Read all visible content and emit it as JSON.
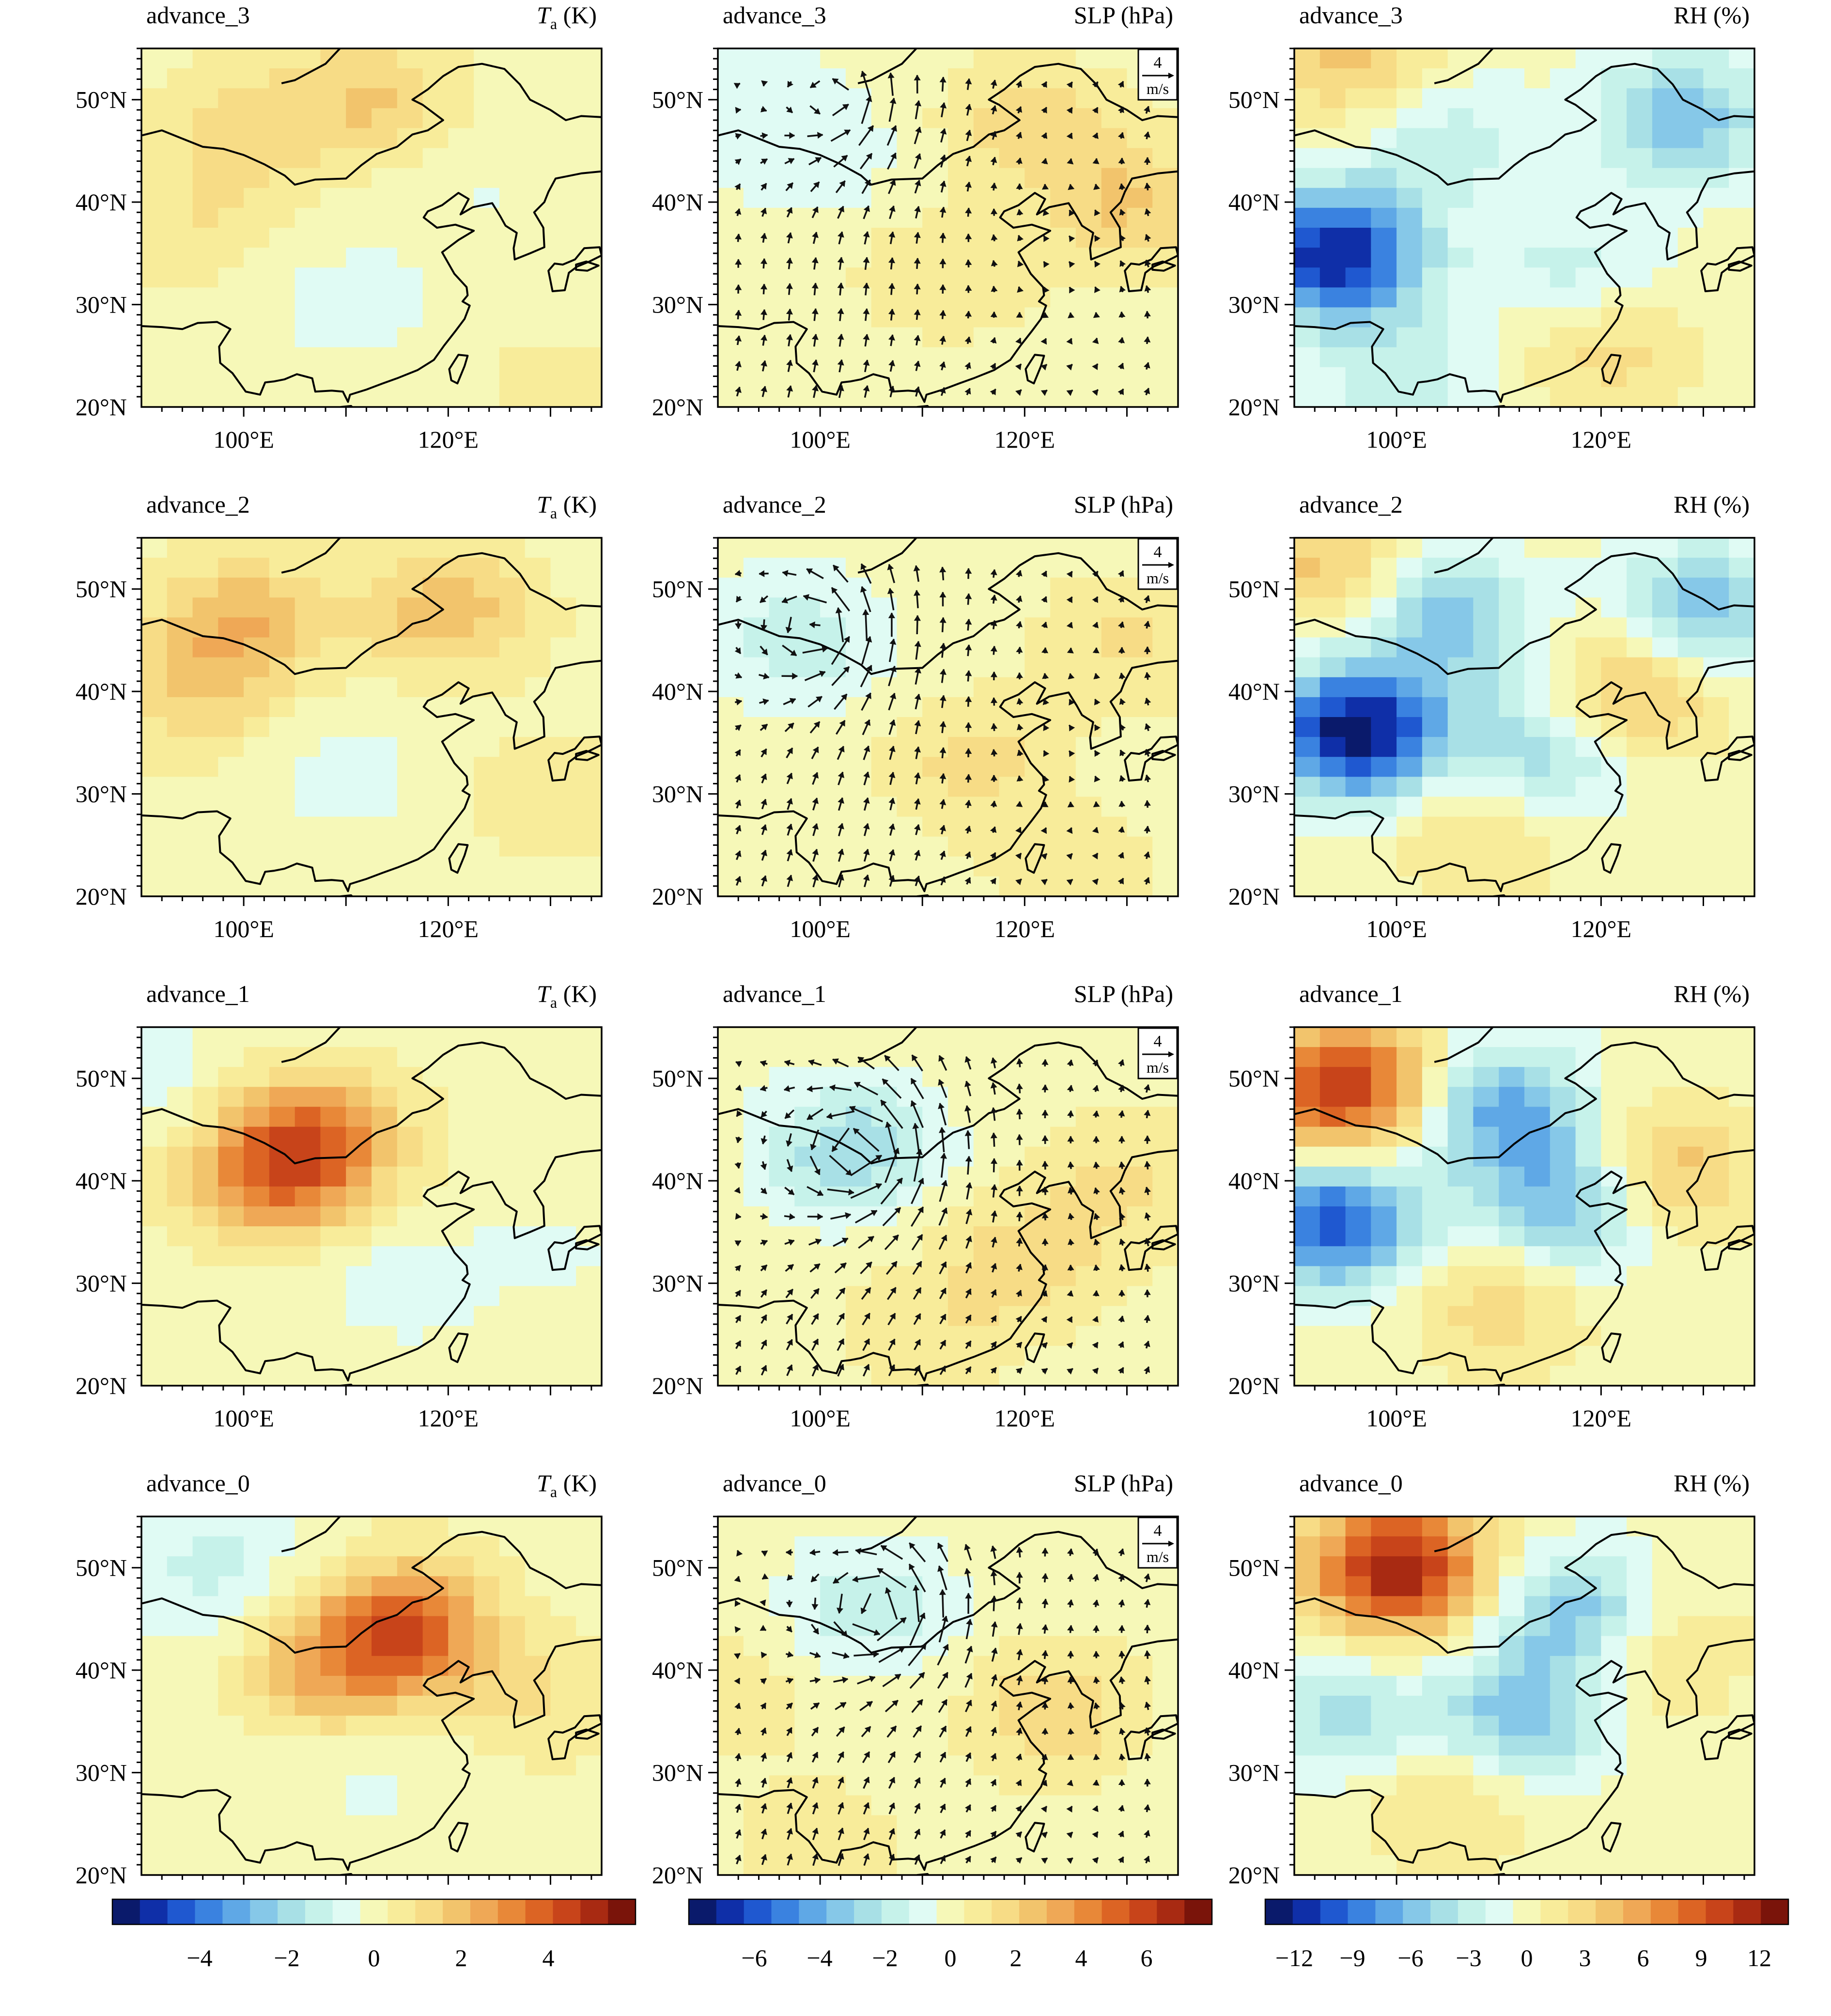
{
  "figure": {
    "lon_ticks": [
      {
        "lon": 100,
        "label": "100°E"
      },
      {
        "lon": 120,
        "label": "120°E"
      }
    ],
    "lat_ticks": [
      {
        "lat": 20,
        "label": "20°N"
      },
      {
        "lat": 30,
        "label": "30°N"
      },
      {
        "lat": 40,
        "label": "40°N"
      },
      {
        "lat": 50,
        "label": "50°N"
      }
    ],
    "lon_range": [
      90,
      135
    ],
    "lat_range": [
      20,
      55
    ],
    "wind_reference": {
      "value": "4",
      "unit": "m/s"
    }
  },
  "rows": [
    {
      "stage": "advance_3"
    },
    {
      "stage": "advance_2"
    },
    {
      "stage": "advance_1"
    },
    {
      "stage": "advance_0"
    }
  ],
  "columns": [
    {
      "variable": "Ta",
      "unit_title": "(K)",
      "title_main": "T",
      "title_sub": "a",
      "has_wind": false
    },
    {
      "variable": "SLP",
      "unit_title": "SLP (hPa)",
      "has_wind": true
    },
    {
      "variable": "RH",
      "unit_title": "RH (%)",
      "has_wind": false
    }
  ],
  "colorbars": [
    {
      "name": "Ta",
      "ticks": [
        "−4",
        "−2",
        "0",
        "2",
        "4"
      ],
      "tick_values": [
        -4,
        -2,
        0,
        2,
        4
      ],
      "range": [
        -6,
        6
      ]
    },
    {
      "name": "SLP",
      "ticks": [
        "−6",
        "−4",
        "−2",
        "0",
        "2",
        "4",
        "6"
      ],
      "tick_values": [
        -6,
        -4,
        -2,
        0,
        2,
        4,
        6
      ],
      "range": [
        -8,
        8
      ]
    },
    {
      "name": "RH",
      "ticks": [
        "−12",
        "−9",
        "−6",
        "−3",
        "0",
        "3",
        "6",
        "9",
        "12"
      ],
      "tick_values": [
        -12,
        -9,
        -6,
        -3,
        0,
        3,
        6,
        9,
        12
      ],
      "range": [
        -13.5,
        13.5
      ]
    }
  ],
  "palette": [
    "#0a1a6b",
    "#0f2fa8",
    "#1f58d0",
    "#3a82e0",
    "#5fa8e6",
    "#86c8e8",
    "#a8e0e6",
    "#c6f2ea",
    "#e0fbf4",
    "#f6f8b8",
    "#f8ec9a",
    "#f7dc86",
    "#f2c46c",
    "#efa856",
    "#e88838",
    "#dc6424",
    "#c8441a",
    "#a82a12",
    "#7a140a"
  ],
  "map_data": {
    "anomaly_centers": [
      [
        [
          {
            "lon": 113,
            "lat": 50,
            "v": 1.6
          },
          {
            "lon": 100,
            "lat": 47,
            "v": 1.2
          },
          {
            "lon": 95,
            "lat": 38,
            "v": 0.8
          },
          {
            "lon": 110,
            "lat": 30,
            "v": -0.6
          },
          {
            "lon": 122,
            "lat": 42,
            "v": -0.4
          },
          {
            "lon": 130,
            "lat": 22,
            "v": 0.5
          }
        ],
        [
          {
            "lon": 120,
            "lat": 48,
            "v": 1.6
          },
          {
            "lon": 112,
            "lat": 33,
            "v": 1.2
          },
          {
            "lon": 95,
            "lat": 50,
            "v": -0.8
          },
          {
            "lon": 100,
            "lat": 44,
            "v": -0.9
          },
          {
            "lon": 130,
            "lat": 40,
            "v": 2.2
          }
        ],
        [
          {
            "lon": 94,
            "lat": 35,
            "v": -12
          },
          {
            "lon": 118,
            "lat": 32,
            "v": -4
          },
          {
            "lon": 128,
            "lat": 48,
            "v": -6
          },
          {
            "lon": 105,
            "lat": 46,
            "v": -3
          },
          {
            "lon": 95,
            "lat": 54,
            "v": 4
          },
          {
            "lon": 120,
            "lat": 27,
            "v": 4
          },
          {
            "lon": 100,
            "lat": 23,
            "v": -3
          }
        ]
      ],
      [
        [
          {
            "lon": 100,
            "lat": 47,
            "v": 2.0
          },
          {
            "lon": 120,
            "lat": 48,
            "v": 2.0
          },
          {
            "lon": 95,
            "lat": 40,
            "v": 1.4
          },
          {
            "lon": 110,
            "lat": 32,
            "v": -0.6
          },
          {
            "lon": 130,
            "lat": 30,
            "v": 0.8
          }
        ],
        [
          {
            "lon": 98,
            "lat": 45,
            "v": -1.8
          },
          {
            "lon": 115,
            "lat": 33,
            "v": 1.6
          },
          {
            "lon": 130,
            "lat": 45,
            "v": 1.4
          },
          {
            "lon": 125,
            "lat": 22,
            "v": 1.0
          }
        ],
        [
          {
            "lon": 96,
            "lat": 36,
            "v": -13
          },
          {
            "lon": 105,
            "lat": 47,
            "v": -6
          },
          {
            "lon": 130,
            "lat": 48,
            "v": -6
          },
          {
            "lon": 114,
            "lat": 34,
            "v": -5
          },
          {
            "lon": 123,
            "lat": 40,
            "v": 5
          },
          {
            "lon": 93,
            "lat": 52,
            "v": 4
          },
          {
            "lon": 108,
            "lat": 27,
            "v": 3
          }
        ]
      ],
      [
        [
          {
            "lon": 107,
            "lat": 44,
            "v": 3.2
          },
          {
            "lon": 102,
            "lat": 40,
            "v": 2.5
          },
          {
            "lon": 92,
            "lat": 50,
            "v": -0.6
          },
          {
            "lon": 115,
            "lat": 30,
            "v": -0.6
          },
          {
            "lon": 130,
            "lat": 33,
            "v": -0.4
          }
        ],
        [
          {
            "lon": 103,
            "lat": 43,
            "v": -2.8
          },
          {
            "lon": 120,
            "lat": 32,
            "v": 1.8
          },
          {
            "lon": 130,
            "lat": 40,
            "v": 1.4
          },
          {
            "lon": 110,
            "lat": 25,
            "v": 1.0
          }
        ],
        [
          {
            "lon": 95,
            "lat": 49,
            "v": 11
          },
          {
            "lon": 94,
            "lat": 36,
            "v": -10
          },
          {
            "lon": 110,
            "lat": 47,
            "v": -7
          },
          {
            "lon": 117,
            "lat": 38,
            "v": -7
          },
          {
            "lon": 126,
            "lat": 41,
            "v": 5
          },
          {
            "lon": 110,
            "lat": 28,
            "v": 3
          }
        ]
      ],
      [
        [
          {
            "lon": 116,
            "lat": 44,
            "v": 3.8
          },
          {
            "lon": 108,
            "lat": 40,
            "v": 2.0
          },
          {
            "lon": 97,
            "lat": 50,
            "v": -1.2
          },
          {
            "lon": 112,
            "lat": 30,
            "v": -0.5
          },
          {
            "lon": 130,
            "lat": 37,
            "v": 0.9
          }
        ],
        [
          {
            "lon": 105,
            "lat": 46,
            "v": -1.8
          },
          {
            "lon": 123,
            "lat": 36,
            "v": 2.0
          },
          {
            "lon": 92,
            "lat": 38,
            "v": 1.0
          },
          {
            "lon": 100,
            "lat": 22,
            "v": 1.2
          }
        ],
        [
          {
            "lon": 100,
            "lat": 50,
            "v": 12
          },
          {
            "lon": 118,
            "lat": 45,
            "v": -7
          },
          {
            "lon": 112,
            "lat": 35,
            "v": -6
          },
          {
            "lon": 95,
            "lat": 35,
            "v": -4
          },
          {
            "lon": 124,
            "lat": 42,
            "v": 4
          },
          {
            "lon": 105,
            "lat": 28,
            "v": 3
          }
        ]
      ]
    ],
    "wind_vortex": [
      {
        "lon": 102,
        "lat": 50,
        "strength": 0.9
      },
      {
        "lon": 100,
        "lat": 46,
        "strength": 1.2
      },
      {
        "lon": 104,
        "lat": 43,
        "strength": 1.8
      },
      {
        "lon": 106,
        "lat": 46,
        "strength": 1.6
      }
    ]
  }
}
